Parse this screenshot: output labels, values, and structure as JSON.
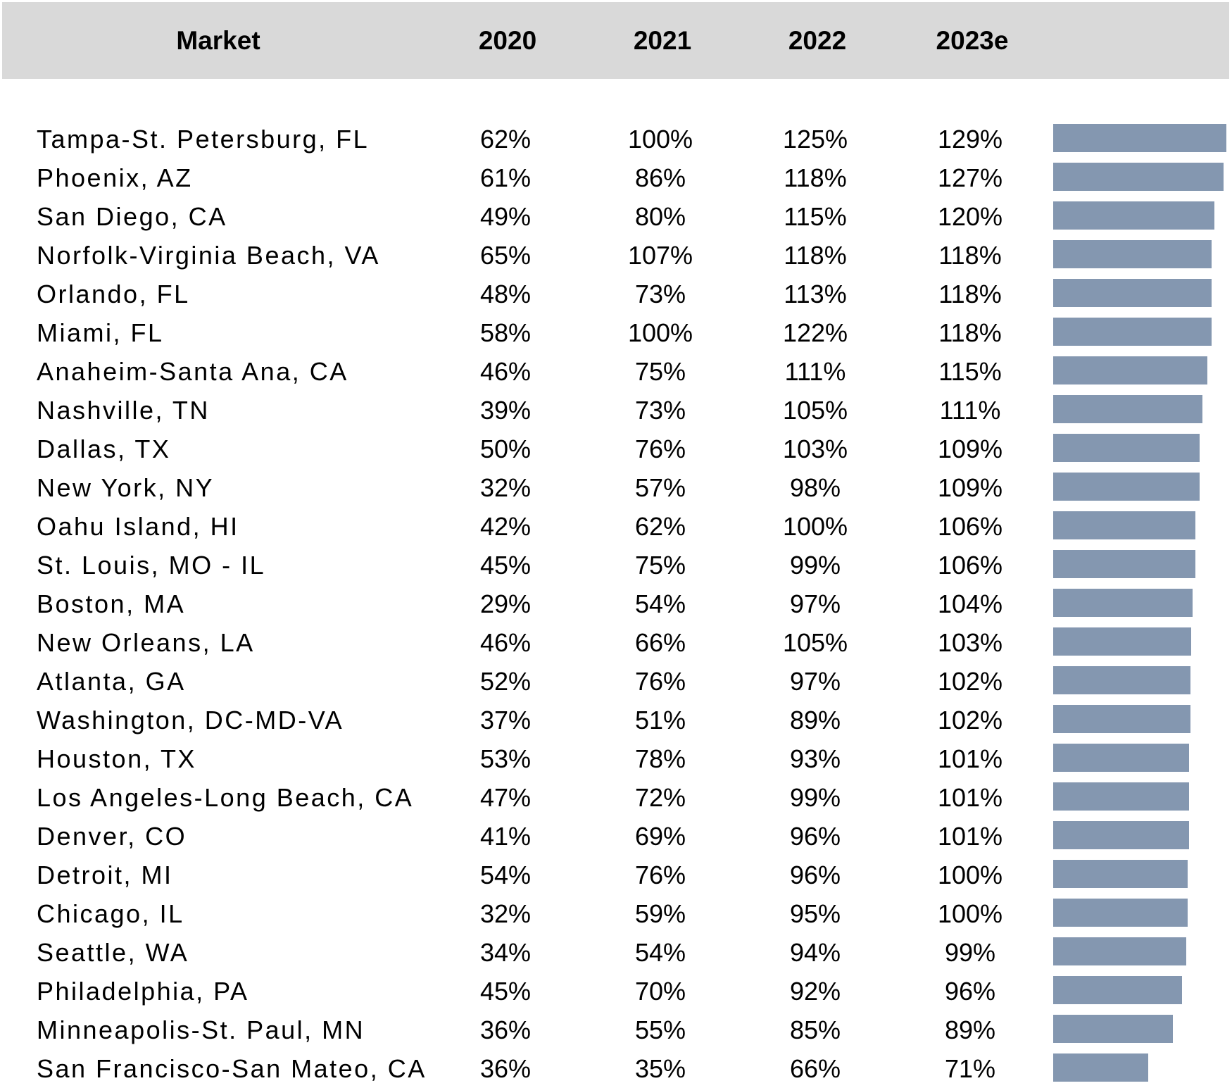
{
  "colors": {
    "header_bg": "#d9d9d9",
    "bar": "#8497b0"
  },
  "header": {
    "market": "Market",
    "y2020": "2020",
    "y2021": "2021",
    "y2022": "2022",
    "y2023": "2023e"
  },
  "chart_data": {
    "type": "table",
    "columns": [
      "Market",
      "2020",
      "2021",
      "2022",
      "2023e"
    ],
    "bar_column": "2023e",
    "bar_axis_max": 129,
    "rows": [
      {
        "market": "Tampa-St. Petersburg, FL",
        "v2020": "62%",
        "v2021": "100%",
        "v2022": "125%",
        "v2023": "129%",
        "bar": 129
      },
      {
        "market": "Phoenix, AZ",
        "v2020": "61%",
        "v2021": "86%",
        "v2022": "118%",
        "v2023": "127%",
        "bar": 127
      },
      {
        "market": "San Diego, CA",
        "v2020": "49%",
        "v2021": "80%",
        "v2022": "115%",
        "v2023": "120%",
        "bar": 120
      },
      {
        "market": "Norfolk-Virginia Beach, VA",
        "v2020": "65%",
        "v2021": "107%",
        "v2022": "118%",
        "v2023": "118%",
        "bar": 118
      },
      {
        "market": "Orlando, FL",
        "v2020": "48%",
        "v2021": "73%",
        "v2022": "113%",
        "v2023": "118%",
        "bar": 118
      },
      {
        "market": "Miami, FL",
        "v2020": "58%",
        "v2021": "100%",
        "v2022": "122%",
        "v2023": "118%",
        "bar": 118
      },
      {
        "market": "Anaheim-Santa Ana, CA",
        "v2020": "46%",
        "v2021": "75%",
        "v2022": "111%",
        "v2023": "115%",
        "bar": 115
      },
      {
        "market": "Nashville, TN",
        "v2020": "39%",
        "v2021": "73%",
        "v2022": "105%",
        "v2023": "111%",
        "bar": 111
      },
      {
        "market": "Dallas, TX",
        "v2020": "50%",
        "v2021": "76%",
        "v2022": "103%",
        "v2023": "109%",
        "bar": 109
      },
      {
        "market": "New York, NY",
        "v2020": "32%",
        "v2021": "57%",
        "v2022": "98%",
        "v2023": "109%",
        "bar": 109
      },
      {
        "market": "Oahu Island, HI",
        "v2020": "42%",
        "v2021": "62%",
        "v2022": "100%",
        "v2023": "106%",
        "bar": 106
      },
      {
        "market": "St. Louis, MO - IL",
        "v2020": "45%",
        "v2021": "75%",
        "v2022": "99%",
        "v2023": "106%",
        "bar": 106
      },
      {
        "market": "Boston, MA",
        "v2020": "29%",
        "v2021": "54%",
        "v2022": "97%",
        "v2023": "104%",
        "bar": 104
      },
      {
        "market": "New Orleans, LA",
        "v2020": "46%",
        "v2021": "66%",
        "v2022": "105%",
        "v2023": "103%",
        "bar": 103
      },
      {
        "market": "Atlanta, GA",
        "v2020": "52%",
        "v2021": "76%",
        "v2022": "97%",
        "v2023": "102%",
        "bar": 102
      },
      {
        "market": "Washington, DC-MD-VA",
        "v2020": "37%",
        "v2021": "51%",
        "v2022": "89%",
        "v2023": "102%",
        "bar": 102
      },
      {
        "market": "Houston, TX",
        "v2020": "53%",
        "v2021": "78%",
        "v2022": "93%",
        "v2023": "101%",
        "bar": 101
      },
      {
        "market": "Los Angeles-Long Beach, CA",
        "v2020": "47%",
        "v2021": "72%",
        "v2022": "99%",
        "v2023": "101%",
        "bar": 101
      },
      {
        "market": "Denver, CO",
        "v2020": "41%",
        "v2021": "69%",
        "v2022": "96%",
        "v2023": "101%",
        "bar": 101
      },
      {
        "market": "Detroit, MI",
        "v2020": "54%",
        "v2021": "76%",
        "v2022": "96%",
        "v2023": "100%",
        "bar": 100
      },
      {
        "market": "Chicago, IL",
        "v2020": "32%",
        "v2021": "59%",
        "v2022": "95%",
        "v2023": "100%",
        "bar": 100
      },
      {
        "market": "Seattle, WA",
        "v2020": "34%",
        "v2021": "54%",
        "v2022": "94%",
        "v2023": "99%",
        "bar": 99
      },
      {
        "market": "Philadelphia, PA",
        "v2020": "45%",
        "v2021": "70%",
        "v2022": "92%",
        "v2023": "96%",
        "bar": 96
      },
      {
        "market": "Minneapolis-St. Paul, MN",
        "v2020": "36%",
        "v2021": "55%",
        "v2022": "85%",
        "v2023": "89%",
        "bar": 89
      },
      {
        "market": "San Francisco-San Mateo, CA",
        "v2020": "36%",
        "v2021": "35%",
        "v2022": "66%",
        "v2023": "71%",
        "bar": 71
      }
    ]
  }
}
